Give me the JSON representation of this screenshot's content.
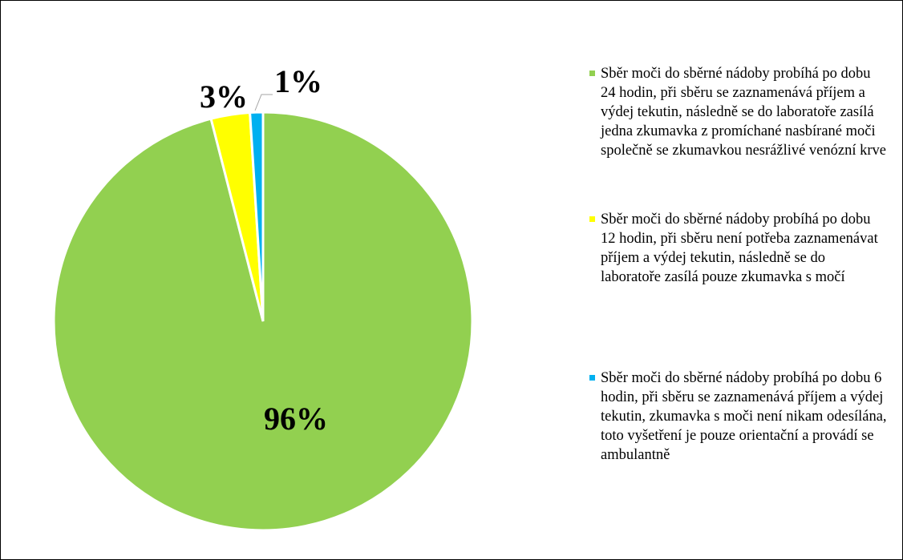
{
  "chart_data": {
    "type": "pie",
    "categories": [
      "Sběr moči do sběrné nádoby probíhá po dobu 24 hodin, při sběru se zaznamenává příjem a výdej tekutin, následně se do laboratoře zasílá jedna zkumavka z promíchané nasbírané moči společně se zkumavkou nesrážlivé venózní krve",
      "Sběr moči do sběrné nádoby probíhá po dobu 12 hodin, při sběru není potřeba zaznamenávat příjem a výdej tekutin, následně se do laboratoře zasílá pouze zkumavka s močí",
      "Sběr moči do sběrné nádoby probíhá po dobu 6 hodin, při sběru se zaznamenává příjem a výdej tekutin, zkumavka s moči není nikam odesílána, toto vyšetření je pouze orientační a provádí se ambulantně"
    ],
    "values": [
      96,
      3,
      1
    ],
    "value_labels": [
      "96%",
      "3%",
      "1%"
    ],
    "colors": [
      "#92d050",
      "#ffff00",
      "#00b0f0"
    ],
    "legend": "right"
  }
}
